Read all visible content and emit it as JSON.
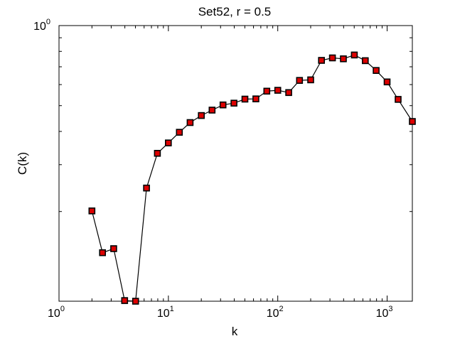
{
  "chart_data": {
    "type": "line",
    "title": "Set52, r = 0.5",
    "xlabel": "k",
    "ylabel": "C(k)",
    "xscale": "log",
    "yscale": "log",
    "xlim": [
      1,
      1700
    ],
    "ylim": [
      0.092,
      1.0
    ],
    "grid": false,
    "legend": "none",
    "xticks": [
      {
        "value": 1,
        "base": "10",
        "exp": "0"
      },
      {
        "value": 10,
        "base": "10",
        "exp": "1"
      },
      {
        "value": 100,
        "base": "10",
        "exp": "2"
      },
      {
        "value": 1000,
        "base": "10",
        "exp": "3"
      }
    ],
    "yticks": [
      {
        "value": 1,
        "base": "10",
        "exp": "0"
      }
    ],
    "series": [
      {
        "marker": "square",
        "marker_face": "#dd0000",
        "marker_edge": "#000000",
        "line_color": "#000000",
        "x": [
          2,
          2.5,
          3.16,
          3.98,
          5.01,
          6.31,
          7.94,
          10,
          12.6,
          15.8,
          20,
          25.1,
          31.6,
          39.8,
          50.1,
          63.1,
          79.4,
          100,
          126,
          158,
          200,
          251,
          316,
          398,
          501,
          631,
          794,
          1000,
          1260,
          1700
        ],
        "y": [
          0.201,
          0.14,
          0.145,
          0.0925,
          0.092,
          0.245,
          0.331,
          0.362,
          0.397,
          0.432,
          0.459,
          0.481,
          0.503,
          0.511,
          0.529,
          0.53,
          0.567,
          0.571,
          0.56,
          0.622,
          0.625,
          0.74,
          0.756,
          0.75,
          0.775,
          0.738,
          0.678,
          0.614,
          0.528,
          0.436
        ]
      }
    ]
  }
}
